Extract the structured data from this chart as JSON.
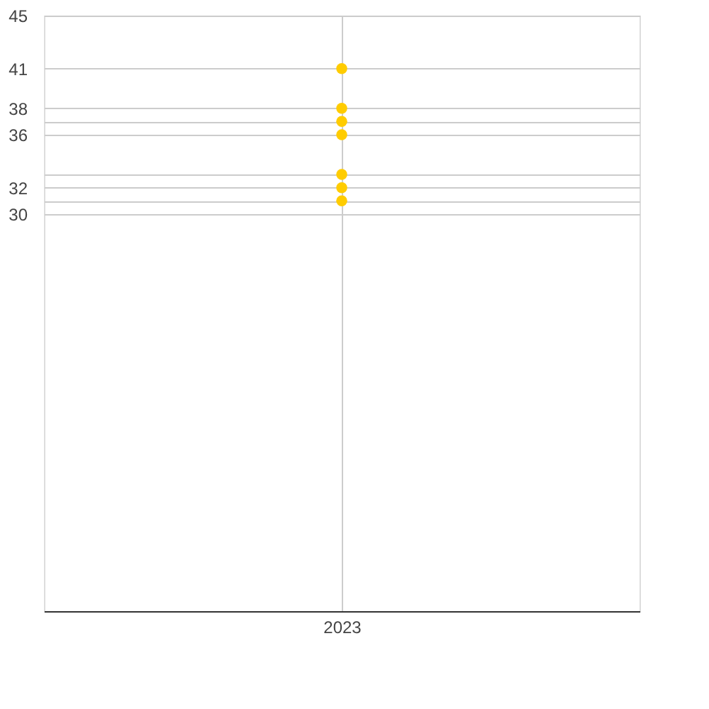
{
  "chart_data": {
    "type": "scatter",
    "categories": [
      "2023"
    ],
    "series": [
      {
        "color": "#ffcc00",
        "values": [
          41
        ]
      },
      {
        "color": "#ffcc00",
        "values": [
          38
        ]
      },
      {
        "color": "#ffcc00",
        "values": [
          37
        ]
      },
      {
        "color": "#ffcc00",
        "values": [
          36
        ]
      },
      {
        "color": "#ffcc00",
        "values": [
          33
        ]
      },
      {
        "color": "#ffcc00",
        "values": [
          32
        ]
      },
      {
        "color": "#ffcc00",
        "values": [
          31
        ]
      }
    ],
    "marker": "circle",
    "ylim": [
      0,
      45
    ],
    "yticks": [
      30,
      {
        "value": 31,
        "label": null
      },
      32,
      {
        "value": 33,
        "label": null
      },
      36,
      {
        "value": 37,
        "label": null
      },
      38,
      41,
      45
    ],
    "grid": true
  }
}
